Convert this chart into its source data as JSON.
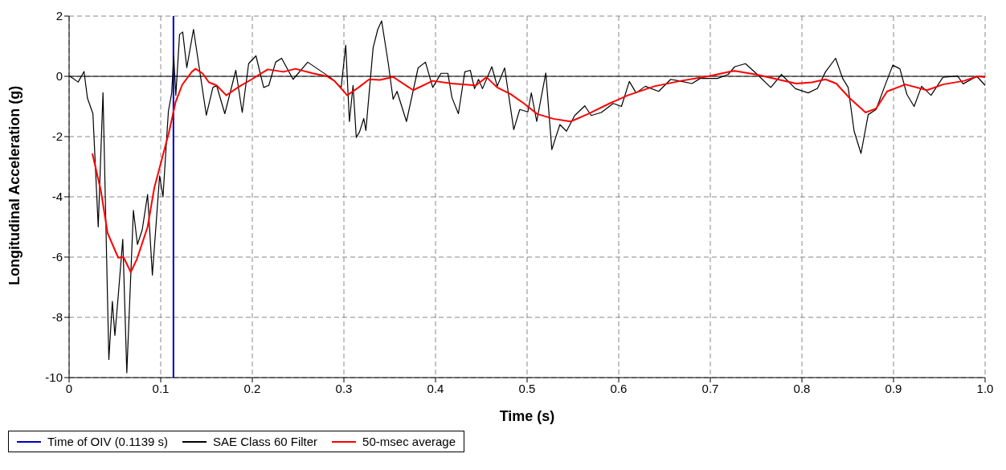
{
  "chart_data": {
    "type": "line",
    "xlabel": "Time (s)",
    "ylabel": "Longitudinal Acceleration (g)",
    "xlim": [
      0,
      1
    ],
    "xticks": [
      0,
      0.1,
      0.2,
      0.3,
      0.4,
      0.5,
      0.6,
      0.7,
      0.8,
      0.9,
      {
        "value": 1,
        "label": "1.0"
      }
    ],
    "ylim": [
      -10,
      2
    ],
    "yticks": [
      -10,
      -8,
      -6,
      -4,
      -2,
      0,
      2
    ],
    "grid": true,
    "legend": "bottom",
    "line_style": "solid",
    "ref_lines": [
      {
        "axis": "x",
        "value": 0.1139,
        "label": "Time of OIV (0.1139 s)",
        "color": "#0000c0"
      },
      {
        "axis": "y",
        "value": 0,
        "color": "#000000"
      }
    ],
    "series": [
      {
        "name": "SAE Class 60 Filter",
        "color": "#000000",
        "x": [
          0.001,
          0.0099,
          0.0163,
          0.02,
          0.026,
          0.0318,
          0.037,
          0.0434,
          0.0472,
          0.05,
          0.0536,
          0.0586,
          0.063,
          0.0702,
          0.0746,
          0.0798,
          0.0857,
          0.0909,
          0.0988,
          0.1025,
          0.1084,
          0.112,
          0.1142,
          0.1165,
          0.1206,
          0.124,
          0.1285,
          0.1358,
          0.1498,
          0.157,
          0.161,
          0.17,
          0.182,
          0.189,
          0.196,
          0.204,
          0.2124,
          0.218,
          0.2255,
          0.232,
          0.2445,
          0.2605,
          0.2867,
          0.297,
          0.302,
          0.306,
          0.31,
          0.3135,
          0.317,
          0.3217,
          0.324,
          0.3319,
          0.337,
          0.3412,
          0.3485,
          0.3537,
          0.358,
          0.3683,
          0.381,
          0.389,
          0.397,
          0.406,
          0.4135,
          0.418,
          0.425,
          0.432,
          0.438,
          0.4426,
          0.447,
          0.4513,
          0.4615,
          0.4674,
          0.4755,
          0.4854,
          0.492,
          0.5008,
          0.5046,
          0.5105,
          0.5204,
          0.527,
          0.5358,
          0.543,
          0.552,
          0.563,
          0.57,
          0.581,
          0.594,
          0.603,
          0.6116,
          0.619,
          0.629,
          0.6436,
          0.6568,
          0.6655,
          0.68,
          0.689,
          0.7078,
          0.7194,
          0.7267,
          0.7384,
          0.75,
          0.766,
          0.7777,
          0.793,
          0.8068,
          0.817,
          0.8258,
          0.8368,
          0.8445,
          0.8505,
          0.857,
          0.8645,
          0.8724,
          0.881,
          0.8899,
          0.8992,
          0.907,
          0.9146,
          0.9225,
          0.9307,
          0.941,
          0.954,
          0.97,
          0.976,
          0.991,
          1.0
        ],
        "values": [
          0.0,
          -0.19,
          0.16,
          -0.72,
          -1.24,
          -5.0,
          -0.54,
          -9.4,
          -7.47,
          -8.6,
          -7.3,
          -5.41,
          -9.84,
          -4.45,
          -5.58,
          -5.1,
          -3.92,
          -6.6,
          -3.3,
          -4.0,
          -1.16,
          -0.55,
          0.68,
          -0.63,
          1.39,
          1.47,
          0.29,
          1.56,
          -1.29,
          -0.37,
          -0.3,
          -1.24,
          0.2,
          -1.2,
          0.42,
          0.68,
          -0.37,
          -0.3,
          0.47,
          0.6,
          -0.1,
          0.47,
          -0.07,
          -0.37,
          1.03,
          -1.5,
          -0.3,
          -2.03,
          -1.85,
          -1.4,
          -1.8,
          0.95,
          1.56,
          1.84,
          0.42,
          -0.76,
          -0.5,
          -1.5,
          0.28,
          0.47,
          -0.37,
          0.1,
          0.1,
          -0.71,
          -1.24,
          0.15,
          0.2,
          -0.41,
          -0.1,
          -0.41,
          0.32,
          -0.33,
          0.28,
          -1.77,
          -1.1,
          -1.18,
          -0.55,
          -1.5,
          0.11,
          -2.43,
          -1.6,
          -1.82,
          -1.3,
          -0.98,
          -1.3,
          -1.2,
          -0.9,
          -1.0,
          -0.17,
          -0.55,
          -0.33,
          -0.5,
          -0.1,
          -0.15,
          -0.24,
          -0.07,
          -0.07,
          0.06,
          0.32,
          0.42,
          0.1,
          -0.37,
          0.06,
          -0.41,
          -0.55,
          -0.4,
          0.15,
          0.6,
          -0.07,
          -0.37,
          -1.82,
          -2.56,
          -1.27,
          -1.1,
          -0.37,
          0.37,
          0.25,
          -0.6,
          -1.0,
          -0.33,
          -0.63,
          -0.03,
          0.01,
          -0.25,
          0.0,
          -0.3
        ]
      },
      {
        "name": "50-msec average",
        "color": "#ff0000",
        "x": [
          0.0254,
          0.0347,
          0.042,
          0.0536,
          0.0594,
          0.0673,
          0.074,
          0.0857,
          0.093,
          0.1017,
          0.109,
          0.1163,
          0.1235,
          0.134,
          0.138,
          0.1456,
          0.1527,
          0.161,
          0.1716,
          0.1862,
          0.1993,
          0.2168,
          0.234,
          0.247,
          0.266,
          0.2815,
          0.2896,
          0.3036,
          0.316,
          0.3276,
          0.3394,
          0.3537,
          0.3756,
          0.397,
          0.418,
          0.444,
          0.4557,
          0.4674,
          0.482,
          0.4965,
          0.511,
          0.5286,
          0.5475,
          0.5665,
          0.59,
          0.61,
          0.639,
          0.668,
          0.6976,
          0.722,
          0.7267,
          0.75,
          0.7733,
          0.7937,
          0.811,
          0.8258,
          0.8375,
          0.852,
          0.8695,
          0.881,
          0.893,
          0.913,
          0.9365,
          0.954,
          0.977,
          0.992,
          1.0
        ],
        "values": [
          -2.56,
          -3.8,
          -5.2,
          -6.02,
          -6.0,
          -6.5,
          -6.07,
          -5.0,
          -3.7,
          -2.7,
          -1.86,
          -0.85,
          -0.28,
          0.15,
          0.25,
          0.1,
          -0.2,
          -0.3,
          -0.63,
          -0.33,
          -0.1,
          0.23,
          0.15,
          0.25,
          0.1,
          0.0,
          -0.15,
          -0.63,
          -0.37,
          -0.1,
          -0.12,
          -0.02,
          -0.46,
          -0.15,
          -0.24,
          -0.3,
          -0.03,
          -0.37,
          -0.59,
          -0.9,
          -1.25,
          -1.41,
          -1.5,
          -1.25,
          -0.9,
          -0.63,
          -0.33,
          -0.15,
          0.0,
          0.16,
          0.18,
          0.06,
          -0.1,
          -0.24,
          -0.2,
          -0.1,
          -0.24,
          -0.72,
          -1.2,
          -1.07,
          -0.5,
          -0.27,
          -0.46,
          -0.27,
          -0.15,
          0.0,
          -0.03
        ]
      }
    ]
  }
}
